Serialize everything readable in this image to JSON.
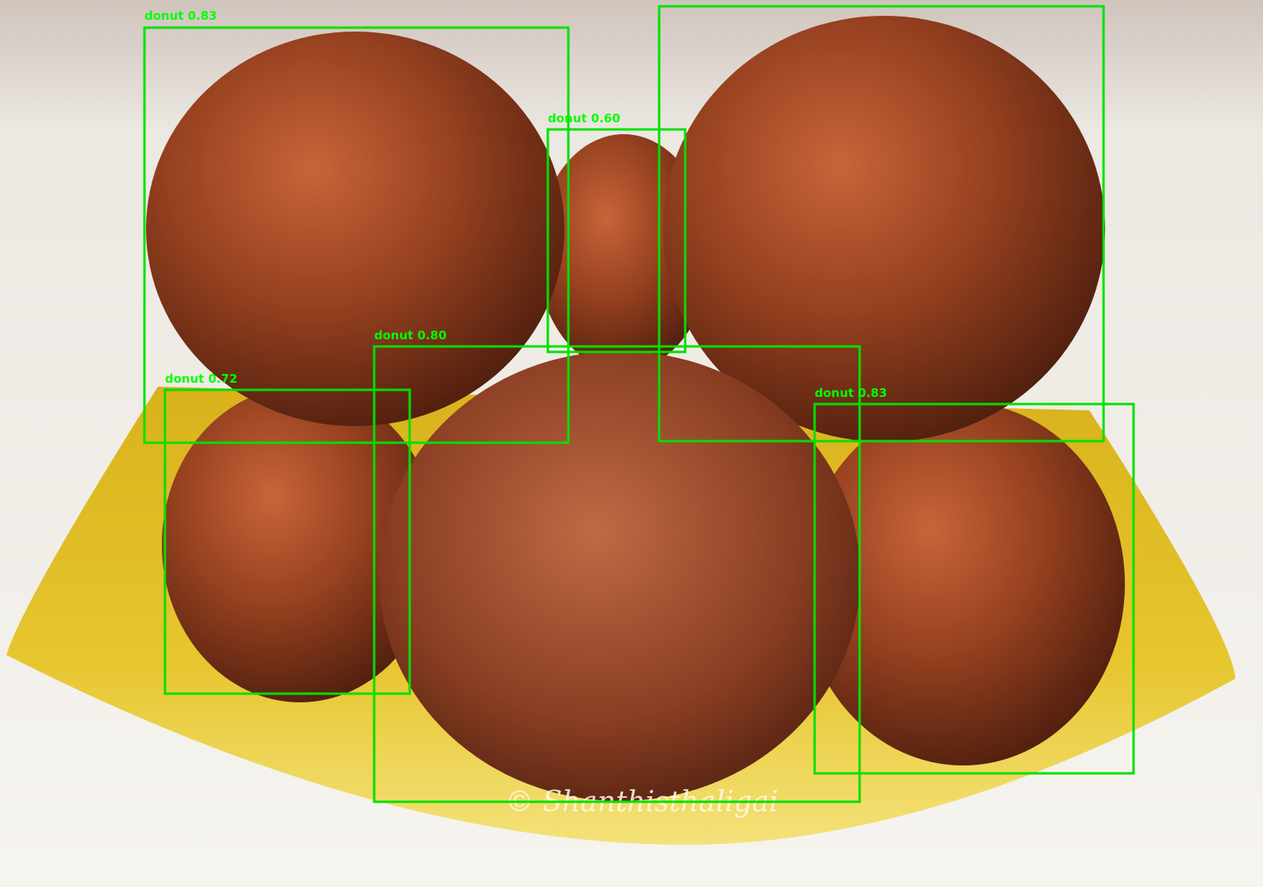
{
  "detections": [
    {
      "label": "donut 0.83"
    },
    {
      "label": "donut 0.60"
    },
    {
      "label": "donut 0.80"
    },
    {
      "label": "donut 0.72"
    },
    {
      "label": "donut 0.83"
    }
  ],
  "watermark": "© Shanthisthaligai"
}
